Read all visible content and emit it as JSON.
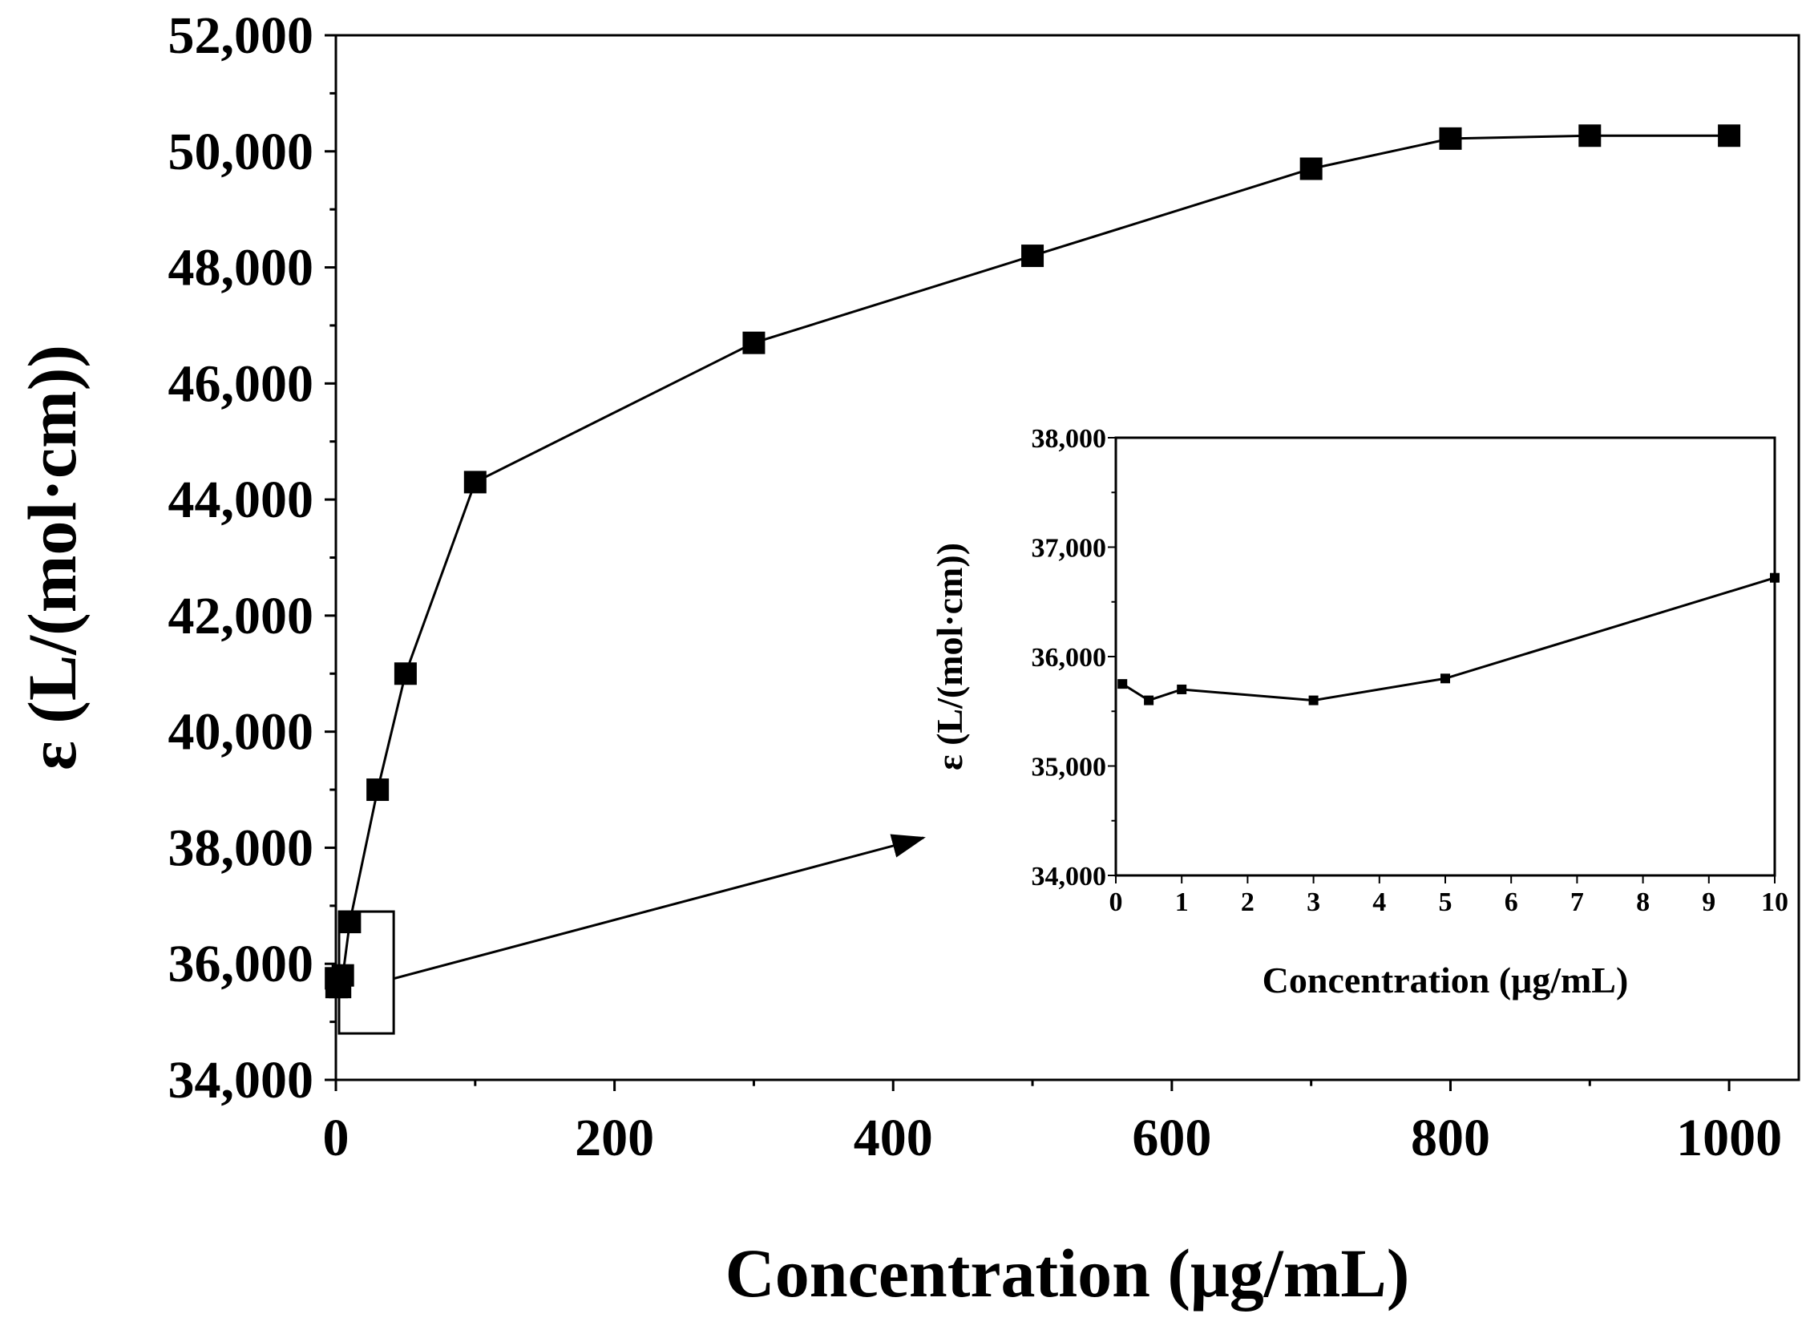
{
  "chart_data": [
    {
      "id": "main",
      "type": "line",
      "title": "",
      "xlabel": "Concentration (μg/mL)",
      "ylabel": "ε (L/(mol·cm))",
      "xlim": [
        0,
        1050
      ],
      "ylim": [
        34000,
        52000
      ],
      "xticks": [
        0,
        200,
        400,
        600,
        800,
        1000
      ],
      "xtick_labels": [
        "0",
        "200",
        "400",
        "600",
        "800",
        "1000"
      ],
      "yticks": [
        34000,
        36000,
        38000,
        40000,
        42000,
        44000,
        46000,
        48000,
        50000,
        52000
      ],
      "ytick_labels": [
        "34,000",
        "36,000",
        "38,000",
        "40,000",
        "42,000",
        "44,000",
        "46,000",
        "48,000",
        "50,000",
        "52,000"
      ],
      "grid": false,
      "marker": "square",
      "series": [
        {
          "name": "ε",
          "x": [
            0.1,
            0.5,
            1,
            3,
            5,
            10,
            30,
            50,
            100,
            300,
            500,
            700,
            800,
            900,
            1000
          ],
          "y": [
            35750,
            35600,
            35700,
            35600,
            35800,
            36720,
            39000,
            41000,
            44300,
            46700,
            48200,
            49700,
            50220,
            50270,
            50270
          ]
        }
      ],
      "annotations": [
        {
          "type": "zoom-box",
          "x_range": [
            0,
            30
          ],
          "y_range": [
            34800,
            36900
          ]
        },
        {
          "type": "arrow",
          "from": "zoom-box",
          "to": "inset"
        }
      ]
    },
    {
      "id": "inset",
      "type": "line",
      "title": "",
      "xlabel": "Concentration (μg/mL)",
      "ylabel": "ε (L/(mol·cm))",
      "xlim": [
        0,
        10
      ],
      "ylim": [
        34000,
        38000
      ],
      "xticks": [
        0,
        1,
        2,
        3,
        4,
        5,
        6,
        7,
        8,
        9,
        10
      ],
      "xtick_labels": [
        "0",
        "1",
        "2",
        "3",
        "4",
        "5",
        "6",
        "7",
        "8",
        "9",
        "10"
      ],
      "yticks": [
        34000,
        35000,
        36000,
        37000,
        38000
      ],
      "ytick_labels": [
        "34,000",
        "35,000",
        "36,000",
        "37,000",
        "38,000"
      ],
      "grid": false,
      "marker": "square",
      "series": [
        {
          "name": "ε",
          "x": [
            0.1,
            0.5,
            1,
            3,
            5,
            10
          ],
          "y": [
            35750,
            35600,
            35700,
            35600,
            35800,
            36720
          ]
        }
      ]
    }
  ]
}
